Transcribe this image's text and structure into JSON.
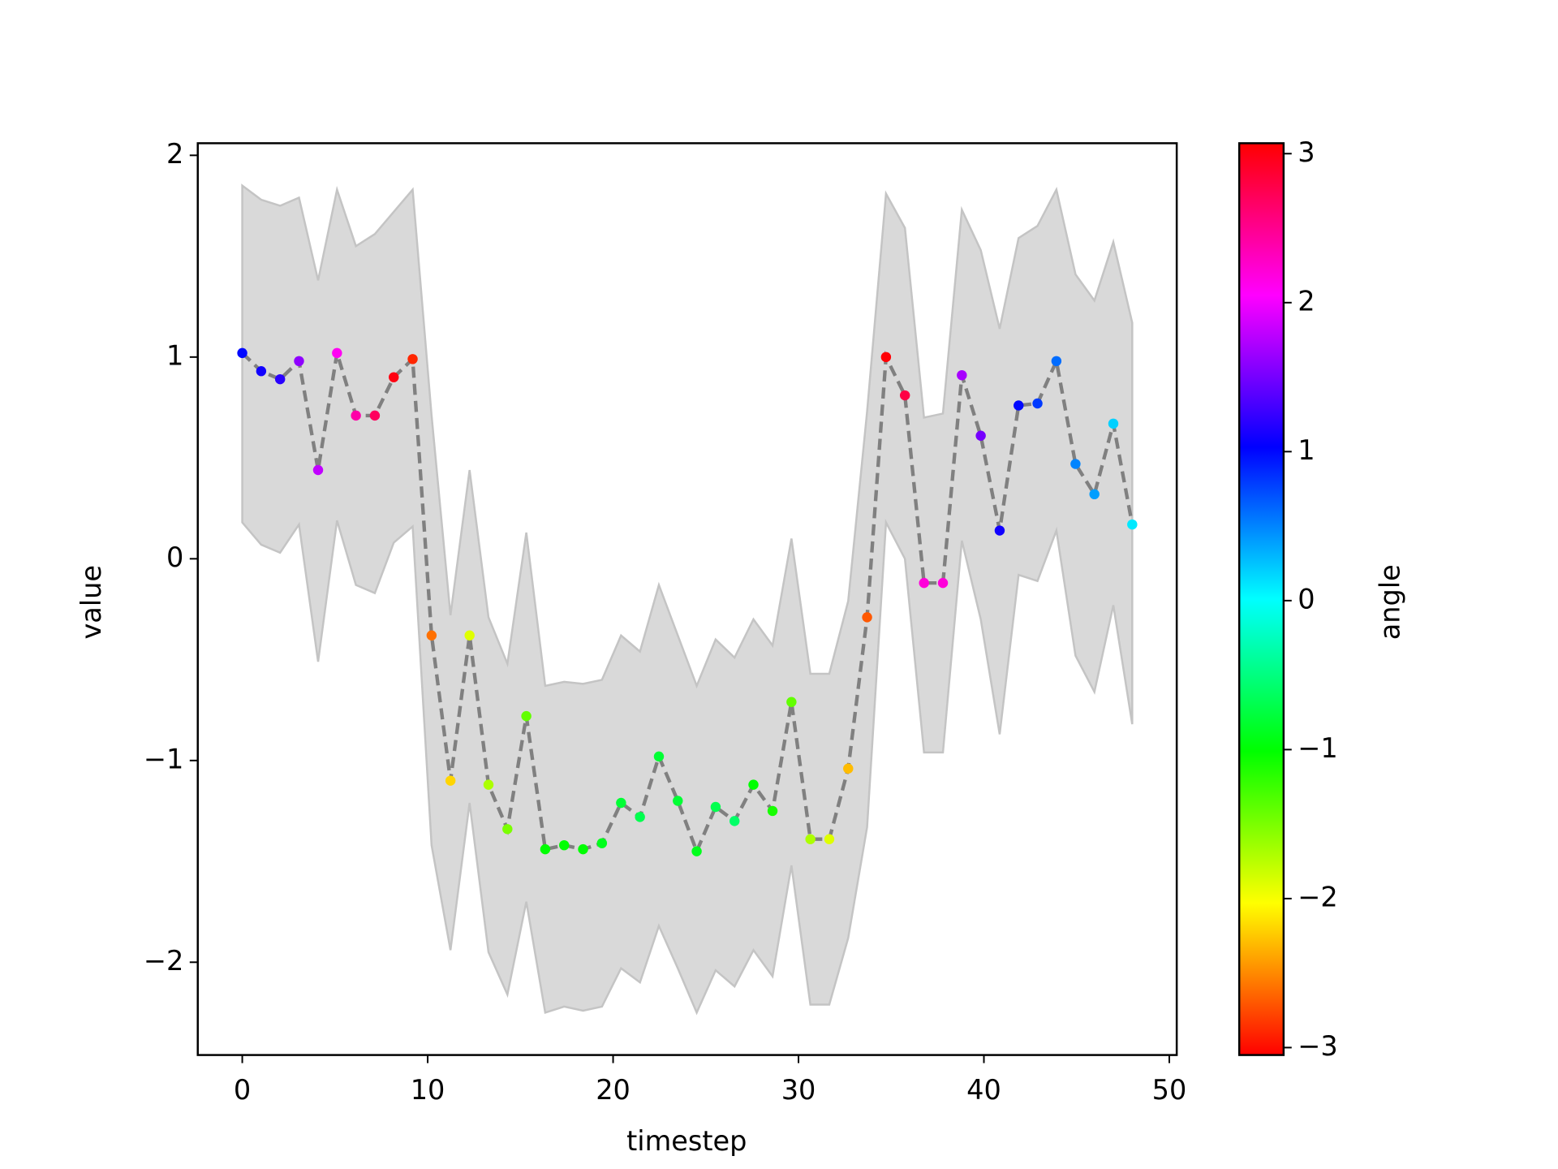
{
  "chart_data": {
    "type": "line",
    "xlabel": "timestep",
    "ylabel": "value",
    "colorbar_label": "angle",
    "colormap": "hsv",
    "line_color": "#808080",
    "band_color": "#d9d9d9",
    "band_edge_color": "#c4c4c4",
    "x": [
      0,
      1.02,
      2.04,
      3.06,
      4.09,
      5.11,
      6.13,
      7.15,
      8.17,
      9.19,
      10.21,
      11.23,
      12.26,
      13.28,
      14.3,
      15.32,
      16.34,
      17.36,
      18.38,
      19.4,
      20.43,
      21.45,
      22.47,
      23.49,
      24.51,
      25.53,
      26.55,
      27.57,
      28.6,
      29.62,
      30.64,
      31.66,
      32.68,
      33.7,
      34.72,
      35.74,
      36.77,
      37.79,
      38.81,
      39.83,
      40.85,
      41.87,
      42.89,
      43.91,
      44.94,
      45.96,
      46.98,
      48
    ],
    "y": [
      1.02,
      0.93,
      0.89,
      0.98,
      0.44,
      1.02,
      0.71,
      0.71,
      0.9,
      0.99,
      -0.38,
      -1.1,
      -0.38,
      -1.12,
      -1.34,
      -0.78,
      -1.44,
      -1.42,
      -1.44,
      -1.41,
      -1.21,
      -1.28,
      -0.98,
      -1.2,
      -1.45,
      -1.23,
      -1.3,
      -1.12,
      -1.25,
      -0.71,
      -1.39,
      -1.39,
      -1.04,
      -0.29,
      1.0,
      0.81,
      -0.12,
      -0.12,
      0.91,
      0.61,
      0.14,
      0.76,
      0.77,
      0.98,
      0.47,
      0.32,
      0.67,
      0.17
    ],
    "upper": [
      1.85,
      1.78,
      1.75,
      1.79,
      1.38,
      1.83,
      1.55,
      1.61,
      1.72,
      1.83,
      0.71,
      -0.28,
      0.44,
      -0.29,
      -0.52,
      0.13,
      -0.63,
      -0.61,
      -0.62,
      -0.6,
      -0.38,
      -0.46,
      -0.13,
      -0.38,
      -0.63,
      -0.4,
      -0.49,
      -0.3,
      -0.43,
      0.1,
      -0.57,
      -0.57,
      -0.21,
      0.73,
      1.81,
      1.64,
      0.7,
      0.72,
      1.73,
      1.53,
      1.14,
      1.59,
      1.65,
      1.83,
      1.41,
      1.28,
      1.57,
      1.17
    ],
    "lower": [
      0.18,
      0.07,
      0.03,
      0.17,
      -0.51,
      0.19,
      -0.13,
      -0.17,
      0.08,
      0.16,
      -1.42,
      -1.94,
      -1.21,
      -1.95,
      -2.16,
      -1.7,
      -2.25,
      -2.22,
      -2.24,
      -2.22,
      -2.03,
      -2.1,
      -1.82,
      -2.03,
      -2.25,
      -2.04,
      -2.12,
      -1.94,
      -2.07,
      -1.52,
      -2.21,
      -2.21,
      -1.88,
      -1.33,
      0.18,
      0.0,
      -0.96,
      -0.96,
      0.09,
      -0.3,
      -0.87,
      -0.08,
      -0.11,
      0.14,
      -0.48,
      -0.66,
      -0.23,
      -0.82
    ],
    "angle": [
      1.0,
      1.1,
      1.2,
      1.6,
      1.8,
      2.1,
      2.4,
      2.7,
      3.0,
      -2.9,
      -2.6,
      -2.2,
      -1.9,
      -1.7,
      -1.5,
      -1.4,
      -1.0,
      -1.0,
      -1.0,
      -0.9,
      -0.8,
      -0.7,
      -0.8,
      -0.8,
      -0.9,
      -0.7,
      -0.6,
      -1.0,
      -1.1,
      -1.4,
      -1.7,
      -1.9,
      -2.3,
      -2.7,
      3.05,
      2.8,
      2.2,
      2.2,
      1.7,
      1.5,
      1.1,
      1.0,
      0.8,
      0.6,
      0.5,
      0.4,
      0.2,
      0.1
    ],
    "xlim": [
      -2.4,
      50.4
    ],
    "ylim": [
      -2.46,
      2.06
    ],
    "clim": [
      -3.05,
      3.07
    ],
    "xticks": [
      0,
      10,
      20,
      30,
      40,
      50
    ],
    "yticks": [
      {
        "value": -2,
        "label": "−2"
      },
      {
        "value": -1,
        "label": "−1"
      },
      0,
      1,
      2
    ],
    "cticks": [
      {
        "value": -3,
        "label": "−3"
      },
      {
        "value": -2,
        "label": "−2"
      },
      {
        "value": -1,
        "label": "−1"
      },
      0,
      1,
      2,
      3
    ]
  }
}
